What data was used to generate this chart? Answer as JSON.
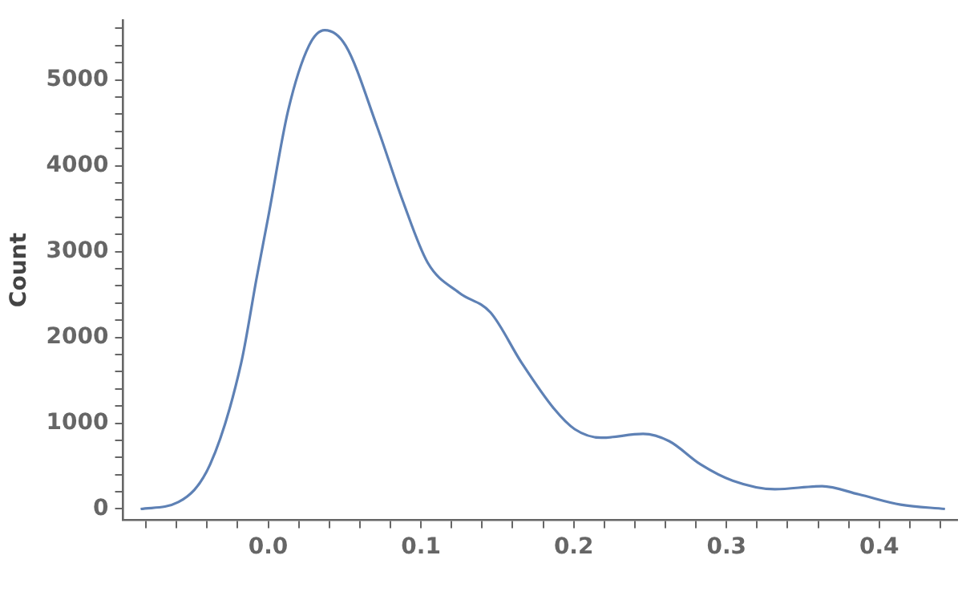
{
  "chart_data": {
    "type": "line",
    "ylabel": "Count",
    "x": [
      -0.0835,
      -0.0588,
      -0.038,
      -0.0177,
      -0.0075,
      0.0,
      0.013,
      0.0267,
      0.037,
      0.0507,
      0.0712,
      0.0883,
      0.1044,
      0.125,
      0.1455,
      0.166,
      0.187,
      0.2006,
      0.218,
      0.2454,
      0.2625,
      0.283,
      0.304,
      0.3317,
      0.3626,
      0.3866,
      0.414,
      0.443
    ],
    "series": [
      {
        "color": "#5e81b5",
        "values": [
          0,
          80,
          520,
          1700,
          2700,
          3400,
          4640,
          5400,
          5580,
          5400,
          4460,
          3580,
          2870,
          2520,
          2290,
          1700,
          1170,
          930,
          830,
          875,
          790,
          520,
          330,
          230,
          265,
          170,
          50,
          0
        ]
      }
    ],
    "xlim": [
      -0.095,
      0.451
    ],
    "ylim": [
      -130,
      5700
    ],
    "xticks": [
      {
        "value": -0.08,
        "label": null
      },
      {
        "value": -0.06,
        "label": null
      },
      {
        "value": -0.04,
        "label": null
      },
      {
        "value": -0.02,
        "label": null
      },
      {
        "value": 0,
        "label": "0.0"
      },
      {
        "value": 0.02,
        "label": null
      },
      {
        "value": 0.04,
        "label": null
      },
      {
        "value": 0.06,
        "label": null
      },
      {
        "value": 0.08,
        "label": null
      },
      {
        "value": 0.1,
        "label": "0.1"
      },
      {
        "value": 0.12,
        "label": null
      },
      {
        "value": 0.14,
        "label": null
      },
      {
        "value": 0.16,
        "label": null
      },
      {
        "value": 0.18,
        "label": null
      },
      {
        "value": 0.2,
        "label": "0.2"
      },
      {
        "value": 0.22,
        "label": null
      },
      {
        "value": 0.24,
        "label": null
      },
      {
        "value": 0.26,
        "label": null
      },
      {
        "value": 0.28,
        "label": null
      },
      {
        "value": 0.3,
        "label": "0.3"
      },
      {
        "value": 0.32,
        "label": null
      },
      {
        "value": 0.34,
        "label": null
      },
      {
        "value": 0.36,
        "label": null
      },
      {
        "value": 0.38,
        "label": null
      },
      {
        "value": 0.4,
        "label": "0.4"
      },
      {
        "value": 0.42,
        "label": null
      },
      {
        "value": 0.44,
        "label": null
      }
    ],
    "yticks": [
      0,
      {
        "value": 200,
        "label": null
      },
      {
        "value": 400,
        "label": null
      },
      {
        "value": 600,
        "label": null
      },
      {
        "value": 800,
        "label": null
      },
      1000,
      {
        "value": 1200,
        "label": null
      },
      {
        "value": 1400,
        "label": null
      },
      {
        "value": 1600,
        "label": null
      },
      {
        "value": 1800,
        "label": null
      },
      2000,
      {
        "value": 2200,
        "label": null
      },
      {
        "value": 2400,
        "label": null
      },
      {
        "value": 2600,
        "label": null
      },
      {
        "value": 2800,
        "label": null
      },
      3000,
      {
        "value": 3200,
        "label": null
      },
      {
        "value": 3400,
        "label": null
      },
      {
        "value": 3600,
        "label": null
      },
      {
        "value": 3800,
        "label": null
      },
      4000,
      {
        "value": 4200,
        "label": null
      },
      {
        "value": 4400,
        "label": null
      },
      {
        "value": 4600,
        "label": null
      },
      {
        "value": 4800,
        "label": null
      },
      5000,
      {
        "value": 5200,
        "label": null
      },
      {
        "value": 5400,
        "label": null
      },
      {
        "value": 5600,
        "label": null
      }
    ],
    "grid": false,
    "legend": false,
    "marker": "none",
    "line_style": "solid"
  }
}
